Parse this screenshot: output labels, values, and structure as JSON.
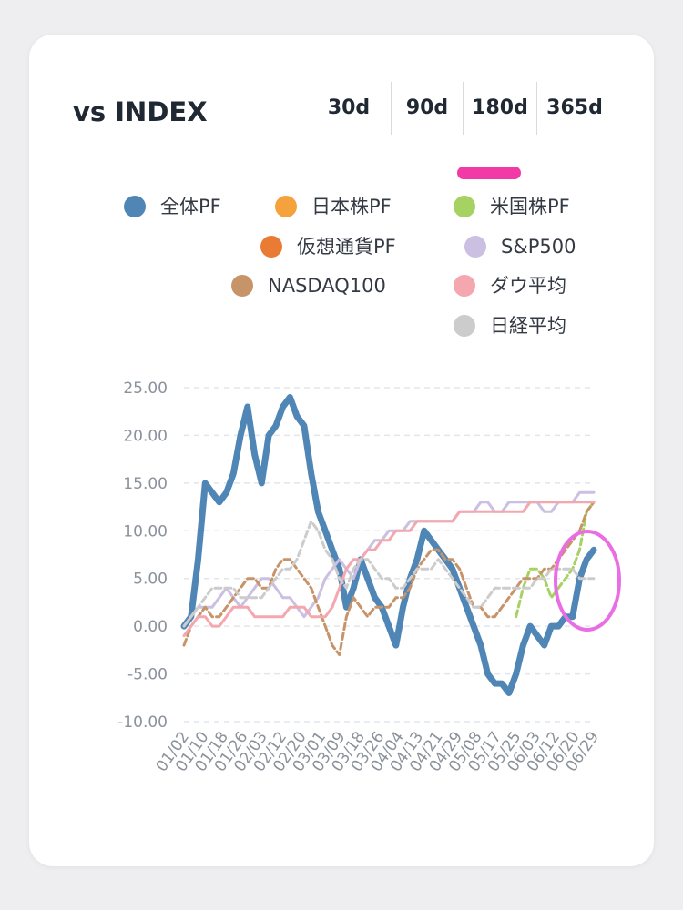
{
  "card": {
    "title": "vs INDEX",
    "tabs": [
      {
        "label": "30d"
      },
      {
        "label": "90d"
      },
      {
        "label": "180d"
      },
      {
        "label": "365d"
      }
    ],
    "active_tab": "180d"
  },
  "chart_data": {
    "type": "line",
    "ylim": [
      -10,
      25
    ],
    "yticks": [
      "25.00",
      "20.00",
      "15.00",
      "10.00",
      "5.00",
      "0.00",
      "-5.00",
      "-10.00"
    ],
    "grid": true,
    "legend_position": "top",
    "x_tick_labels": [
      "01/02",
      "01/10",
      "01/18",
      "01/26",
      "02/03",
      "02/12",
      "02/20",
      "03/01",
      "03/09",
      "03/18",
      "03/26",
      "04/04",
      "04/13",
      "04/21",
      "04/29",
      "05/08",
      "05/17",
      "05/25",
      "06/03",
      "06/12",
      "06/20",
      "06/29"
    ],
    "series": [
      {
        "name": "全体PF",
        "color": "#4f86b5",
        "style": "solid",
        "values": [
          0,
          1,
          7,
          15,
          14,
          13,
          14,
          16,
          20,
          23,
          18,
          15,
          20,
          21,
          23,
          24,
          22,
          21,
          16,
          12,
          10,
          8,
          6,
          2,
          4,
          7,
          5,
          3,
          2,
          0,
          -2,
          2,
          5,
          7,
          10,
          9,
          8,
          7,
          6,
          4,
          2,
          0,
          -2,
          -5,
          -6,
          -6,
          -7,
          -5,
          -2,
          0,
          -1,
          -2,
          0,
          0,
          1,
          1,
          5,
          7,
          8
        ]
      },
      {
        "name": "日本株PF",
        "color": "#f5a23c",
        "style": "dashed",
        "values": []
      },
      {
        "name": "米国株PF",
        "color": "#a6d163",
        "style": "dashed",
        "values": [
          null,
          null,
          null,
          null,
          null,
          null,
          null,
          null,
          null,
          null,
          null,
          null,
          null,
          null,
          null,
          null,
          null,
          null,
          null,
          null,
          null,
          null,
          null,
          null,
          null,
          null,
          null,
          null,
          null,
          null,
          null,
          null,
          null,
          null,
          null,
          null,
          null,
          null,
          null,
          null,
          null,
          null,
          null,
          null,
          null,
          null,
          null,
          1,
          4,
          6,
          6,
          5,
          3,
          4,
          5,
          6,
          8,
          12,
          13
        ]
      },
      {
        "name": "仮想通貨PF",
        "color": "#ea7b35",
        "style": "dashed",
        "values": []
      },
      {
        "name": "S&P500",
        "color": "#cbbfe2",
        "style": "solid",
        "values": [
          0,
          1,
          2,
          2,
          2,
          3,
          4,
          3,
          2,
          3,
          4,
          5,
          5,
          4,
          3,
          3,
          2,
          1,
          2,
          3,
          5,
          6,
          7,
          6,
          5,
          7,
          8,
          9,
          9,
          10,
          10,
          10,
          11,
          11,
          11,
          11,
          11,
          11,
          11,
          12,
          12,
          12,
          13,
          13,
          12,
          12,
          13,
          13,
          13,
          13,
          13,
          12,
          12,
          13,
          13,
          13,
          14,
          14,
          14
        ]
      },
      {
        "name": "NASDAQ100",
        "color": "#c7946a",
        "style": "dashed",
        "values": [
          -2,
          0,
          1,
          2,
          1,
          1,
          2,
          3,
          4,
          5,
          5,
          4,
          4,
          6,
          7,
          7,
          6,
          5,
          4,
          2,
          0,
          -2,
          -3,
          1,
          3,
          2,
          1,
          2,
          2,
          2,
          3,
          3,
          4,
          6,
          7,
          8,
          8,
          7,
          7,
          6,
          4,
          2,
          2,
          1,
          1,
          2,
          3,
          4,
          5,
          5,
          5,
          6,
          6,
          7,
          8,
          9,
          10,
          12,
          13
        ]
      },
      {
        "name": "ダウ平均",
        "color": "#f4a7ae",
        "style": "solid",
        "values": [
          -1,
          0,
          1,
          1,
          0,
          0,
          1,
          2,
          2,
          2,
          1,
          1,
          1,
          1,
          1,
          2,
          2,
          2,
          1,
          1,
          1,
          2,
          4,
          6,
          7,
          7,
          8,
          8,
          9,
          9,
          10,
          10,
          10,
          11,
          11,
          11,
          11,
          11,
          11,
          12,
          12,
          12,
          12,
          12,
          12,
          12,
          12,
          12,
          12,
          13,
          13,
          13,
          13,
          13,
          13,
          13,
          13,
          13,
          13
        ]
      },
      {
        "name": "日経平均",
        "color": "#cccccc",
        "style": "dashed",
        "values": [
          0,
          1,
          2,
          3,
          4,
          4,
          4,
          4,
          3,
          3,
          3,
          3,
          4,
          5,
          6,
          6,
          7,
          9,
          11,
          10,
          8,
          7,
          5,
          4,
          6,
          7,
          7,
          6,
          5,
          5,
          4,
          4,
          5,
          6,
          6,
          6,
          7,
          6,
          5,
          4,
          3,
          2,
          2,
          3,
          4,
          4,
          4,
          4,
          4,
          4,
          5,
          5,
          6,
          6,
          6,
          6,
          5,
          5,
          5
        ]
      }
    ]
  }
}
